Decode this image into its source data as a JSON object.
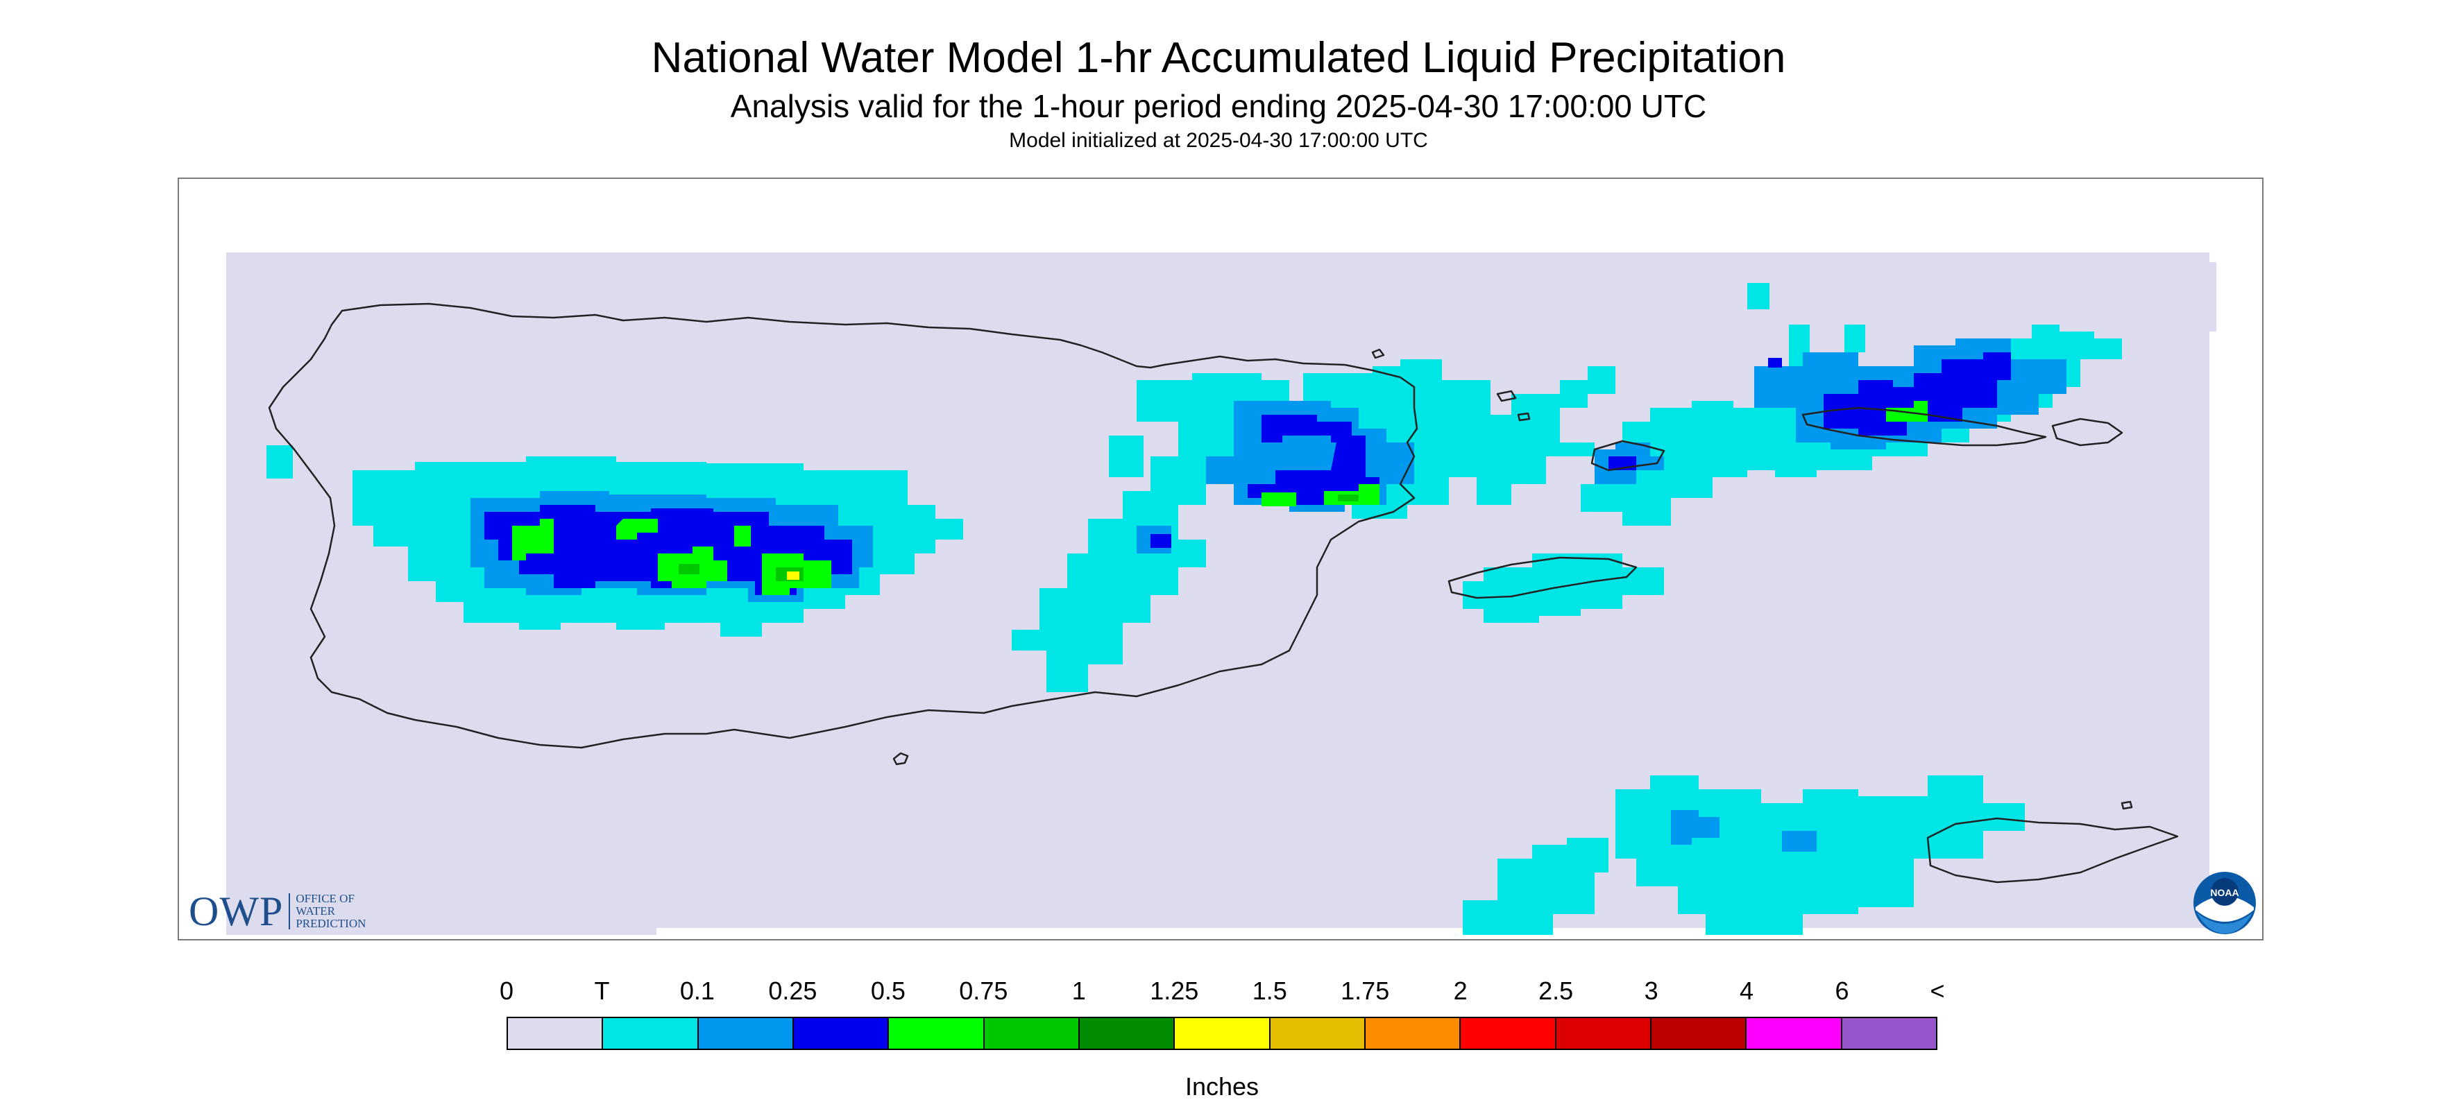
{
  "title": "National Water Model 1-hr Accumulated Liquid Precipitation",
  "subtitle": "Analysis valid for the 1-hour period ending 2025-04-30 17:00:00 UTC",
  "init_text": "Model initialized at 2025-04-30 17:00:00 UTC",
  "logos": {
    "owp": {
      "big": "OWP",
      "line1": "OFFICE OF",
      "line2": "WATER",
      "line3": "PREDICTION"
    },
    "noaa": {
      "text": "NOAA"
    }
  },
  "colors": {
    "background": "#dcdcee",
    "coast": "#222222",
    "frame": "#7a7a7a"
  },
  "legend": {
    "unit": "Inches",
    "tick_labels": [
      "0",
      "T",
      "0.1",
      "0.25",
      "0.5",
      "0.75",
      "1",
      "1.25",
      "1.5",
      "1.75",
      "2",
      "2.5",
      "3",
      "4",
      "6",
      "<"
    ],
    "colors": [
      "#dcdcee",
      "#00e5e5",
      "#0099ef",
      "#0000ef",
      "#00ff00",
      "#00c800",
      "#008c00",
      "#ffff00",
      "#e6be00",
      "#ff8c00",
      "#ff0000",
      "#dd0000",
      "#bb0000",
      "#ff00ff",
      "#9955cc"
    ]
  }
}
